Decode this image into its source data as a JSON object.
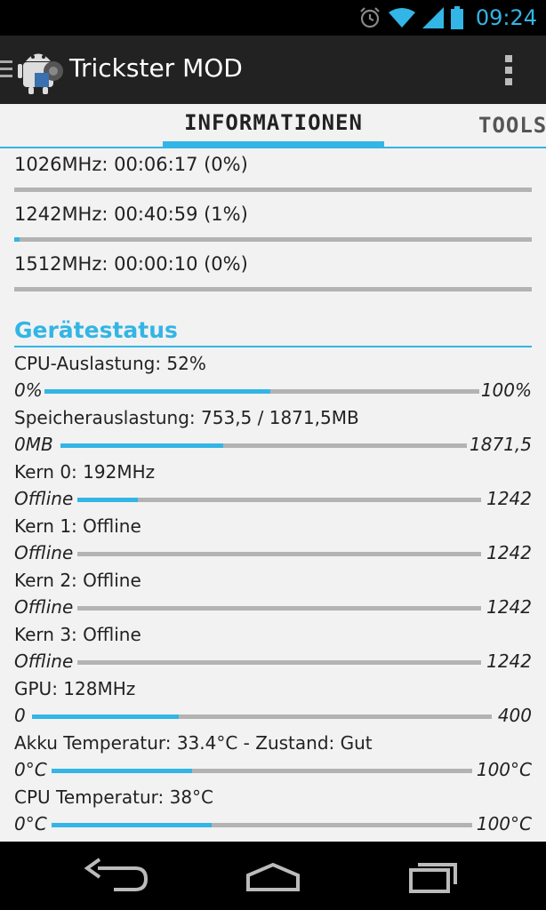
{
  "status": {
    "time": "09:24"
  },
  "app": {
    "title": "Trickster MOD"
  },
  "tabs": [
    {
      "label": "INFORMATIONEN",
      "active": true
    },
    {
      "label": "TOOLS",
      "active": false
    }
  ],
  "frequency_stats": [
    {
      "label": "1026MHz: 00:06:17 (0%)",
      "fraction": 0.0
    },
    {
      "label": "1242MHz: 00:40:59 (1%)",
      "fraction": 0.01
    },
    {
      "label": "1512MHz: 00:00:10 (0%)",
      "fraction": 0.0
    }
  ],
  "device_status": {
    "title": "Gerätestatus",
    "items": [
      {
        "label": "CPU-Auslastung: 52%",
        "min": "0%",
        "max": "100%",
        "fraction": 0.52
      },
      {
        "label": "Speicherauslastung: 753,5 / 1871,5MB",
        "min": "0MB",
        "max": "1871,5",
        "fraction": 0.4
      },
      {
        "label": "Kern 0: 192MHz",
        "min": "Offline",
        "max": "1242",
        "fraction": 0.15
      },
      {
        "label": "Kern 1: Offline",
        "min": "Offline",
        "max": "1242",
        "fraction": 0.0
      },
      {
        "label": "Kern 2: Offline",
        "min": "Offline",
        "max": "1242",
        "fraction": 0.0
      },
      {
        "label": "Kern 3: Offline",
        "min": "Offline",
        "max": "1242",
        "fraction": 0.0
      },
      {
        "label": "GPU: 128MHz",
        "min": "0",
        "max": "400",
        "fraction": 0.32
      },
      {
        "label": "Akku Temperatur: 33.4°C - Zustand: Gut",
        "min": "0°C",
        "max": "100°C",
        "fraction": 0.334
      },
      {
        "label": "CPU Temperatur: 38°C",
        "min": "0°C",
        "max": "100°C",
        "fraction": 0.38
      }
    ]
  },
  "colors": {
    "accent": "#33b5e5",
    "track": "#b3b3b3"
  },
  "icons": [
    "alarm-icon",
    "wifi-icon",
    "signal-icon",
    "battery-icon",
    "drawer-icon",
    "app-icon",
    "overflow-menu-icon",
    "back-icon",
    "home-icon",
    "recents-icon"
  ]
}
